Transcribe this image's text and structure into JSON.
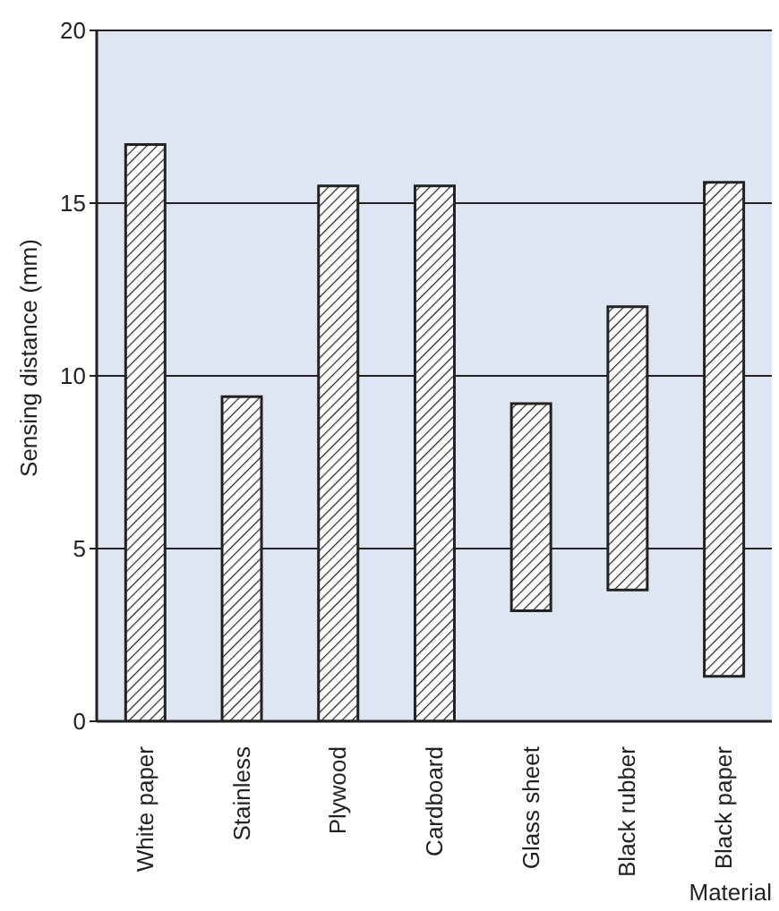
{
  "chart_data": {
    "type": "bar",
    "xlabel": "Material",
    "ylabel": "Sensing distance (mm)",
    "categories": [
      "White paper",
      "Stainless",
      "Plywood",
      "Cardboard",
      "Glass sheet",
      "Black rubber",
      "Black paper"
    ],
    "values": [
      16.7,
      9.4,
      15.5,
      15.5,
      6.0,
      8.2,
      14.3
    ],
    "base": [
      0,
      0,
      0,
      0,
      3.2,
      3.8,
      1.3
    ],
    "color": "#222222",
    "ylim": [
      0,
      20
    ],
    "yticks": [
      0,
      5,
      10,
      15,
      20
    ],
    "grid": "y"
  }
}
